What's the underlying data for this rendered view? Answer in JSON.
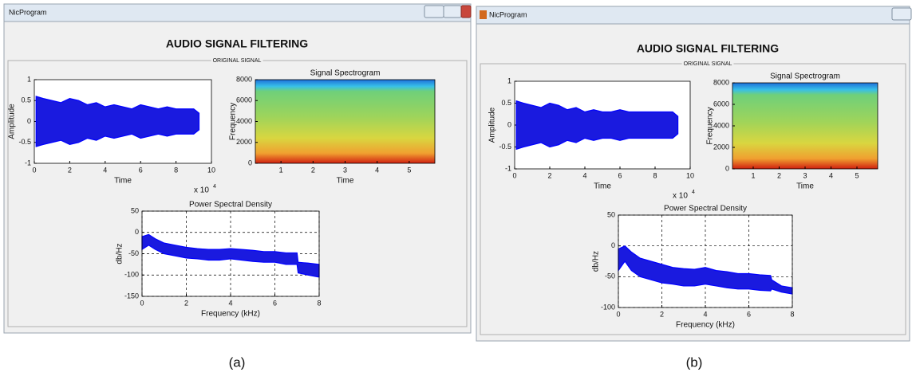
{
  "panels": [
    {
      "caption": "(a)",
      "window_title": "NicProgram",
      "heading": "AUDIO SIGNAL FILTERING",
      "group_label": "ORIGINAL SIGNAL",
      "waveform": {
        "ylabel": "Amplitude",
        "xlabel": "Time",
        "x_exponent": "x 10",
        "x_exponent_power": "4",
        "xlim": [
          0,
          10
        ],
        "xticks": [
          0,
          2,
          4,
          6,
          8,
          10
        ],
        "ylim": [
          -1,
          1
        ],
        "yticks": [
          -1,
          -0.5,
          0,
          0.5,
          1
        ],
        "x": [
          0.1,
          0.5,
          1,
          1.5,
          2,
          2.5,
          3,
          3.5,
          4,
          4.5,
          5,
          5.5,
          6,
          6.5,
          7,
          7.5,
          8,
          8.5,
          9,
          9.3
        ],
        "envelope": [
          0.6,
          0.55,
          0.5,
          0.45,
          0.55,
          0.5,
          0.4,
          0.45,
          0.35,
          0.4,
          0.35,
          0.3,
          0.4,
          0.35,
          0.3,
          0.35,
          0.3,
          0.3,
          0.3,
          0.2
        ]
      },
      "spectrogram": {
        "title": "Signal Spectrogram",
        "ylabel": "Frequency",
        "xlabel": "Time",
        "xlim": [
          0.2,
          5.8
        ],
        "xticks": [
          1,
          2,
          3,
          4,
          5
        ],
        "ylim": [
          0,
          8000
        ],
        "yticks": [
          0,
          2000,
          4000,
          6000,
          8000
        ]
      },
      "psd": {
        "title": "Power Spectral Density",
        "ylabel": "db/Hz",
        "xlabel": "Frequency (kHz)",
        "xlim": [
          0,
          8
        ],
        "xticks": [
          0,
          2,
          4,
          6,
          8
        ],
        "ylim": [
          -150,
          50
        ],
        "yticks": [
          -150,
          -100,
          -50,
          0,
          50
        ],
        "x": [
          0,
          0.3,
          0.6,
          1,
          1.5,
          2,
          2.5,
          3,
          3.5,
          4,
          4.5,
          5,
          5.5,
          6,
          6.5,
          7,
          7.05,
          7.5,
          8
        ],
        "upper": [
          -10,
          -5,
          -15,
          -25,
          -30,
          -35,
          -38,
          -40,
          -40,
          -38,
          -40,
          -42,
          -45,
          -45,
          -48,
          -48,
          -70,
          -72,
          -75
        ],
        "lower": [
          -40,
          -30,
          -40,
          -50,
          -55,
          -60,
          -62,
          -65,
          -65,
          -62,
          -65,
          -68,
          -70,
          -70,
          -75,
          -75,
          -95,
          -100,
          -105
        ]
      }
    },
    {
      "caption": "(b)",
      "window_title": "NicProgram",
      "heading": "AUDIO SIGNAL FILTERING",
      "group_label": "ORIGINAL SIGNAL",
      "waveform": {
        "ylabel": "Amplitude",
        "xlabel": "Time",
        "x_exponent": "x 10",
        "x_exponent_power": "4",
        "xlim": [
          0,
          10
        ],
        "xticks": [
          0,
          2,
          4,
          6,
          8,
          10
        ],
        "ylim": [
          -1,
          1
        ],
        "yticks": [
          -1,
          -0.5,
          0,
          0.5,
          1
        ],
        "x": [
          0.1,
          0.5,
          1,
          1.5,
          2,
          2.5,
          3,
          3.5,
          4,
          4.5,
          5,
          5.5,
          6,
          6.5,
          7,
          7.5,
          8,
          8.5,
          9,
          9.3
        ],
        "envelope": [
          0.55,
          0.5,
          0.45,
          0.4,
          0.5,
          0.45,
          0.35,
          0.4,
          0.3,
          0.35,
          0.3,
          0.3,
          0.35,
          0.3,
          0.3,
          0.3,
          0.3,
          0.3,
          0.3,
          0.2
        ]
      },
      "spectrogram": {
        "title": "Signal Spectrogram",
        "ylabel": "Frequency",
        "xlabel": "Time",
        "xlim": [
          0.2,
          5.8
        ],
        "xticks": [
          1,
          2,
          3,
          4,
          5
        ],
        "ylim": [
          0,
          8000
        ],
        "yticks": [
          0,
          2000,
          4000,
          6000,
          8000
        ]
      },
      "psd": {
        "title": "Power Spectral Density",
        "ylabel": "db/Hz",
        "xlabel": "Frequency (kHz)",
        "xlim": [
          0,
          8
        ],
        "xticks": [
          0,
          2,
          4,
          6,
          8
        ],
        "ylim": [
          -100,
          50
        ],
        "yticks": [
          -100,
          -50,
          0,
          50
        ],
        "x": [
          0,
          0.3,
          0.6,
          1,
          1.5,
          2,
          2.5,
          3,
          3.5,
          4,
          4.5,
          5,
          5.5,
          6,
          6.5,
          7,
          7.05,
          7.5,
          8
        ],
        "upper": [
          -5,
          0,
          -10,
          -20,
          -25,
          -30,
          -35,
          -37,
          -38,
          -35,
          -40,
          -42,
          -45,
          -45,
          -47,
          -48,
          -55,
          -65,
          -68
        ],
        "lower": [
          -40,
          -25,
          -40,
          -50,
          -55,
          -60,
          -62,
          -65,
          -65,
          -62,
          -65,
          -68,
          -70,
          -70,
          -72,
          -73,
          -70,
          -75,
          -78
        ]
      }
    }
  ]
}
